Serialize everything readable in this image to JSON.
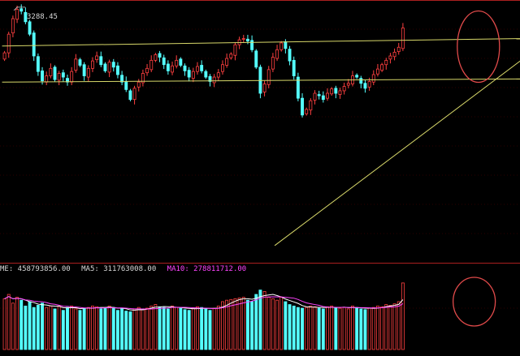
{
  "colors": {
    "background": "#000000",
    "up": "#ff4040",
    "down": "#54ffff",
    "grid": "#5a0000",
    "divider": "#aa1f1f",
    "trendline": "#d8d86a",
    "ma5": "#ffffff",
    "ma10": "#ff44ff",
    "annotation": "#e04a4a",
    "label": "#d8d8d8"
  },
  "price_panel": {
    "peak_label": "3288.45"
  },
  "volume_panel": {
    "vol_label": "ME: 458793856.00",
    "ma5_label": "MA5: 311763008.00",
    "ma10_label": "MA10: 278811712.00"
  },
  "chart_data": {
    "type": "candlestick",
    "price_range": [
      2880,
      3300
    ],
    "volume_range": [
      0,
      520000000
    ],
    "peak_value": 3288.45,
    "annotations": [
      {
        "type": "trendline",
        "from": [
          0,
          3226
        ],
        "to": [
          123,
          3238
        ]
      },
      {
        "type": "trendline",
        "from": [
          0,
          3168
        ],
        "to": [
          123,
          3173
        ]
      },
      {
        "type": "trendline",
        "from": [
          65,
          2905
        ],
        "to": [
          123,
          3205
        ]
      },
      {
        "type": "ellipse",
        "panel": "price",
        "center": [
          113,
          3225
        ]
      },
      {
        "type": "ellipse",
        "panel": "volume",
        "center": [
          112,
          330000000
        ]
      }
    ],
    "closes": [
      3215,
      3245,
      3270,
      3285,
      3282,
      3265,
      3245,
      3210,
      3185,
      3170,
      3178,
      3190,
      3172,
      3182,
      3176,
      3168,
      3185,
      3205,
      3195,
      3178,
      3190,
      3202,
      3210,
      3196,
      3186,
      3200,
      3192,
      3180,
      3168,
      3156,
      3140,
      3158,
      3168,
      3182,
      3190,
      3203,
      3212,
      3208,
      3196,
      3186,
      3194,
      3203,
      3195,
      3186,
      3176,
      3185,
      3193,
      3186,
      3176,
      3169,
      3176,
      3183,
      3196,
      3206,
      3213,
      3228,
      3236,
      3238,
      3234,
      3220,
      3192,
      3150,
      3165,
      3188,
      3208,
      3220,
      3231,
      3222,
      3202,
      3178,
      3142,
      3115,
      3124,
      3138,
      3150,
      3146,
      3140,
      3150,
      3157,
      3150,
      3154,
      3161,
      3166,
      3178,
      3176,
      3166,
      3158,
      3169,
      3180,
      3189,
      3196,
      3203,
      3210,
      3216,
      3224,
      3255
    ],
    "volume": [
      350,
      380,
      320,
      360,
      340,
      300,
      330,
      290,
      305,
      320,
      290,
      300,
      280,
      300,
      270,
      290,
      300,
      280,
      270,
      285,
      290,
      300,
      295,
      280,
      285,
      300,
      290,
      270,
      280,
      265,
      260,
      280,
      290,
      275,
      285,
      300,
      310,
      295,
      290,
      280,
      300,
      290,
      285,
      275,
      270,
      285,
      295,
      290,
      280,
      270,
      285,
      300,
      330,
      340,
      345,
      350,
      355,
      360,
      340,
      330,
      380,
      410,
      400,
      360,
      350,
      340,
      360,
      330,
      310,
      300,
      290,
      285,
      290,
      300,
      295,
      285,
      280,
      295,
      300,
      290,
      285,
      290,
      280,
      300,
      290,
      280,
      275,
      285,
      290,
      300,
      295,
      310,
      305,
      315,
      330,
      459
    ]
  }
}
